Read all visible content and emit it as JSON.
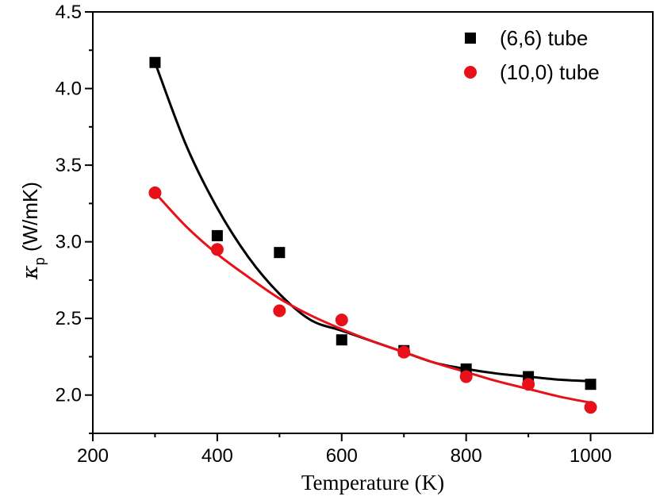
{
  "chart_data": {
    "type": "scatter",
    "xlabel": "Temperature (K)",
    "ylabel": {
      "symbol": "κ",
      "subscript": "p",
      "unit": " (W/mK)"
    },
    "xlim": [
      200,
      1100
    ],
    "ylim": [
      1.75,
      4.5
    ],
    "xticks": [
      200,
      400,
      600,
      800,
      1000
    ],
    "yticks": [
      2.0,
      2.5,
      3.0,
      3.5,
      4.0,
      4.5
    ],
    "xtick_labels": [
      "200",
      "400",
      "600",
      "800",
      "1000"
    ],
    "ytick_labels": [
      "2.0",
      "2.5",
      "3.0",
      "3.5",
      "4.0",
      "4.5"
    ],
    "grid": false,
    "legend_position": "top-right",
    "series": [
      {
        "name": "(6,6)  tube",
        "marker": "square",
        "color": "#000000",
        "x": [
          300,
          400,
          500,
          600,
          700,
          800,
          900,
          1000
        ],
        "y": [
          4.17,
          3.04,
          2.93,
          2.36,
          2.29,
          2.17,
          2.12,
          2.07
        ],
        "fit": {
          "x": [
            300,
            350,
            400,
            450,
            500,
            550,
            600,
            650,
            700,
            750,
            800,
            850,
            900,
            950,
            1000
          ],
          "y": [
            4.17,
            3.63,
            3.22,
            2.9,
            2.66,
            2.49,
            2.42,
            2.35,
            2.28,
            2.21,
            2.17,
            2.14,
            2.12,
            2.1,
            2.09
          ]
        }
      },
      {
        "name": "(10,0) tube",
        "marker": "circle",
        "color": "#e8111a",
        "x": [
          300,
          400,
          500,
          600,
          700,
          800,
          900,
          1000
        ],
        "y": [
          3.32,
          2.95,
          2.55,
          2.49,
          2.28,
          2.12,
          2.07,
          1.92
        ],
        "fit": {
          "x": [
            300,
            350,
            400,
            450,
            500,
            550,
            600,
            650,
            700,
            750,
            800,
            850,
            900,
            950,
            1000
          ],
          "y": [
            3.32,
            3.1,
            2.92,
            2.77,
            2.63,
            2.52,
            2.43,
            2.35,
            2.28,
            2.21,
            2.15,
            2.09,
            2.04,
            1.99,
            1.95
          ]
        }
      }
    ]
  }
}
